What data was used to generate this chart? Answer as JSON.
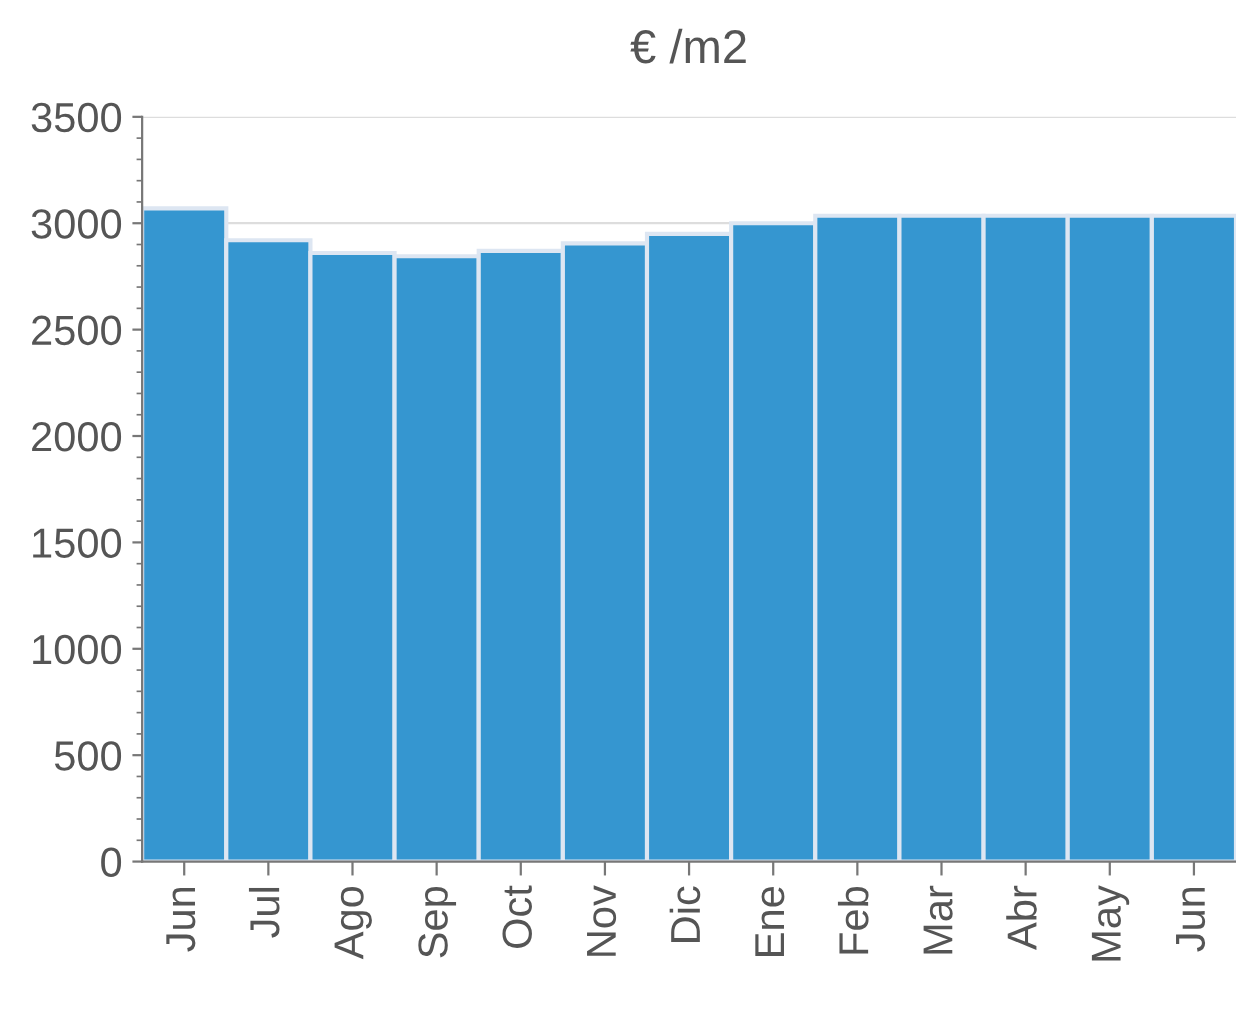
{
  "chart_data": {
    "type": "bar",
    "title": "€ /m2",
    "categories": [
      "Jun",
      "Jul",
      "Ago",
      "Sep",
      "Oct",
      "Nov",
      "Dic",
      "Ene",
      "Feb",
      "Mar",
      "Abr",
      "May",
      "Jun"
    ],
    "values": [
      3070,
      2920,
      2860,
      2845,
      2870,
      2905,
      2950,
      3000,
      3035,
      3035,
      3035,
      3035,
      3035
    ],
    "color": "#3596d0",
    "ylim": [
      0,
      3500
    ],
    "yticks": [
      0,
      500,
      1000,
      1500,
      2000,
      2500,
      3000,
      3500
    ],
    "grid": "y"
  }
}
